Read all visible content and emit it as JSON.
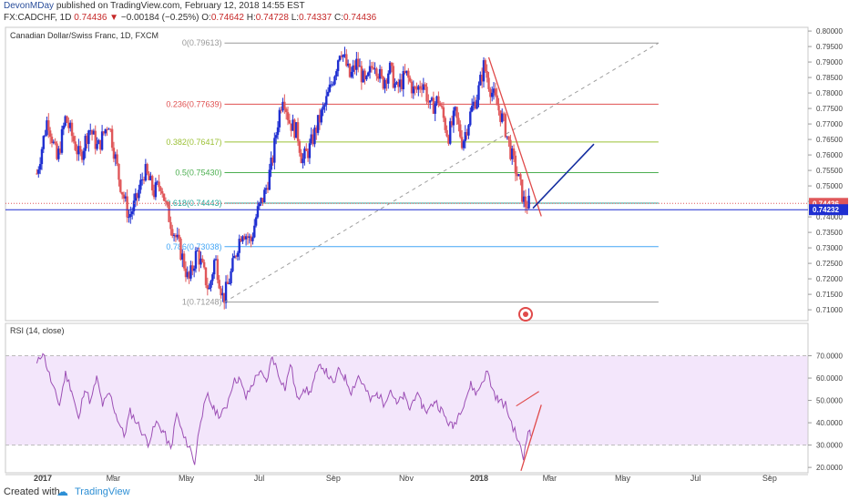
{
  "header": {
    "author": "DevonMDay",
    "published_text": "published on TradingView.com, February 12, 2018 14:55 EST",
    "symbol": "FX:CADCHF, 1D",
    "last": "0.74436",
    "change": "−0.00184 (−0.25%)",
    "o_label": "O:",
    "o_value": "0.74642",
    "h_label": "H:",
    "h_value": "0.74728",
    "l_label": "L:",
    "l_value": "0.74337",
    "c_label": "C:",
    "c_value": "0.74436"
  },
  "footer": {
    "created_with": "Created with",
    "brand": "TradingView"
  },
  "colors": {
    "up": "#1f2fd1",
    "down": "#e0575a",
    "rsi": "#9c4fb5",
    "rsi_band": "#f3e6fb",
    "trend": "#142ea0",
    "red_line": "#e04a4a"
  },
  "chart_data": [
    {
      "type": "candlestick",
      "title": "Canadian Dollar/Swiss Franc, 1D, FXCM",
      "ylim": [
        0.7065,
        0.8012
      ],
      "y_ticks": [
        "0.80000",
        "0.79500",
        "0.79000",
        "0.78500",
        "0.78000",
        "0.77500",
        "0.77000",
        "0.76500",
        "0.76000",
        "0.75500",
        "0.75000",
        "0.74500",
        "0.74000",
        "0.73500",
        "0.73000",
        "0.72500",
        "0.72000",
        "0.71500",
        "0.71000"
      ],
      "x_ticks": [
        "2017",
        "Mar",
        "May",
        "Jul",
        "Sep",
        "Nov",
        "2018",
        "Mar",
        "May",
        "Jul",
        "Sep"
      ],
      "price_labels": [
        {
          "value": "0.74436",
          "price": 0.74436,
          "color": "#e0575a"
        },
        {
          "value": "0.74232",
          "price": 0.74232,
          "color": "#1f2fd1"
        }
      ],
      "fib_levels": [
        {
          "label": "0(0.79613)",
          "price": 0.79613,
          "color": "#999999"
        },
        {
          "label": "0.236(0.77639)",
          "price": 0.77639,
          "color": "#e05050"
        },
        {
          "label": "0.382(0.76417)",
          "price": 0.76417,
          "color": "#9bc034"
        },
        {
          "label": "0.5(0.75430)",
          "price": 0.7543,
          "color": "#4caf50"
        },
        {
          "label": "0.618(0.74443)",
          "price": 0.74443,
          "color": "#26a69a"
        },
        {
          "label": "0.786(0.73038)",
          "price": 0.73038,
          "color": "#42a5f5"
        },
        {
          "label": "1(0.71248)",
          "price": 0.71248,
          "color": "#999999"
        }
      ],
      "price_path": [
        {
          "date": "2016-12-27",
          "price": 0.754
        },
        {
          "date": "2017-01-05",
          "price": 0.772
        },
        {
          "date": "2017-01-13",
          "price": 0.758
        },
        {
          "date": "2017-01-20",
          "price": 0.772
        },
        {
          "date": "2017-02-01",
          "price": 0.759
        },
        {
          "date": "2017-02-09",
          "price": 0.769
        },
        {
          "date": "2017-02-16",
          "price": 0.762
        },
        {
          "date": "2017-02-25",
          "price": 0.771
        },
        {
          "date": "2017-03-06",
          "price": 0.752
        },
        {
          "date": "2017-03-14",
          "price": 0.74
        },
        {
          "date": "2017-03-20",
          "price": 0.745
        },
        {
          "date": "2017-03-27",
          "price": 0.755
        },
        {
          "date": "2017-04-04",
          "price": 0.748
        },
        {
          "date": "2017-04-10",
          "price": 0.751
        },
        {
          "date": "2017-04-14",
          "price": 0.743
        },
        {
          "date": "2017-04-20",
          "price": 0.736
        },
        {
          "date": "2017-04-27",
          "price": 0.728
        },
        {
          "date": "2017-05-03",
          "price": 0.719
        },
        {
          "date": "2017-05-10",
          "price": 0.729
        },
        {
          "date": "2017-05-14",
          "price": 0.724
        },
        {
          "date": "2017-05-20",
          "price": 0.716
        },
        {
          "date": "2017-05-25",
          "price": 0.727
        },
        {
          "date": "2017-06-01",
          "price": 0.7132
        },
        {
          "date": "2017-06-07",
          "price": 0.721
        },
        {
          "date": "2017-06-13",
          "price": 0.731
        },
        {
          "date": "2017-06-17",
          "price": 0.736
        },
        {
          "date": "2017-06-24",
          "price": 0.732
        },
        {
          "date": "2017-06-29",
          "price": 0.741
        },
        {
          "date": "2017-07-06",
          "price": 0.748
        },
        {
          "date": "2017-07-12",
          "price": 0.758
        },
        {
          "date": "2017-07-17",
          "price": 0.772
        },
        {
          "date": "2017-07-21",
          "price": 0.78
        },
        {
          "date": "2017-07-26",
          "price": 0.771
        },
        {
          "date": "2017-08-02",
          "price": 0.767
        },
        {
          "date": "2017-08-06",
          "price": 0.758
        },
        {
          "date": "2017-08-12",
          "price": 0.762
        },
        {
          "date": "2017-08-19",
          "price": 0.77
        },
        {
          "date": "2017-08-25",
          "price": 0.776
        },
        {
          "date": "2017-08-29",
          "price": 0.781
        },
        {
          "date": "2017-09-03",
          "price": 0.788
        },
        {
          "date": "2017-09-07",
          "price": 0.795
        },
        {
          "date": "2017-09-11",
          "price": 0.79
        },
        {
          "date": "2017-09-15",
          "price": 0.785
        },
        {
          "date": "2017-09-21",
          "price": 0.79
        },
        {
          "date": "2017-09-28",
          "price": 0.782
        },
        {
          "date": "2017-10-05",
          "price": 0.791
        },
        {
          "date": "2017-10-12",
          "price": 0.783
        },
        {
          "date": "2017-10-18",
          "price": 0.788
        },
        {
          "date": "2017-10-24",
          "price": 0.781
        },
        {
          "date": "2017-11-01",
          "price": 0.786
        },
        {
          "date": "2017-11-08",
          "price": 0.78
        },
        {
          "date": "2017-11-15",
          "price": 0.784
        },
        {
          "date": "2017-11-21",
          "price": 0.775
        },
        {
          "date": "2017-11-28",
          "price": 0.778
        },
        {
          "date": "2017-12-06",
          "price": 0.766
        },
        {
          "date": "2017-12-12",
          "price": 0.773
        },
        {
          "date": "2017-12-18",
          "price": 0.764
        },
        {
          "date": "2017-12-26",
          "price": 0.775
        },
        {
          "date": "2017-12-31",
          "price": 0.78
        },
        {
          "date": "2018-01-05",
          "price": 0.789
        },
        {
          "date": "2018-01-10",
          "price": 0.782
        },
        {
          "date": "2018-01-16",
          "price": 0.776
        },
        {
          "date": "2018-01-22",
          "price": 0.77
        },
        {
          "date": "2018-01-28",
          "price": 0.76
        },
        {
          "date": "2018-02-03",
          "price": 0.752
        },
        {
          "date": "2018-02-08",
          "price": 0.744
        },
        {
          "date": "2018-02-12",
          "price": 0.74436
        }
      ],
      "drawings": {
        "dashed_trendline": {
          "from": {
            "date": "2017-06-02",
            "price": 0.71248
          },
          "to": {
            "date": "2018-05-31",
            "price": 0.79613
          }
        },
        "red_downtrend": {
          "from": {
            "date": "2018-01-09",
            "price": 0.7915
          },
          "to": {
            "date": "2018-02-22",
            "price": 0.7402
          }
        },
        "blue_projection": {
          "from": {
            "date": "2018-02-15",
            "price": 0.7428
          },
          "to": {
            "date": "2018-04-07",
            "price": 0.7635
          }
        },
        "horizontal_line": {
          "price": 0.74232
        }
      }
    },
    {
      "type": "line",
      "title": "RSI (14, close)",
      "ylim": [
        17.6,
        84.5
      ],
      "y_ticks": [
        "70.0000",
        "60.0000",
        "50.0000",
        "40.0000",
        "30.0000",
        "20.0000"
      ],
      "band": [
        30,
        70
      ],
      "series": [
        {
          "name": "RSI",
          "points": [
            {
              "date": "2016-12-27",
              "value": 66
            },
            {
              "date": "2017-01-01",
              "value": 72
            },
            {
              "date": "2017-01-05",
              "value": 64
            },
            {
              "date": "2017-01-10",
              "value": 55
            },
            {
              "date": "2017-01-15",
              "value": 48
            },
            {
              "date": "2017-01-20",
              "value": 62
            },
            {
              "date": "2017-01-25",
              "value": 55
            },
            {
              "date": "2017-01-31",
              "value": 41
            },
            {
              "date": "2017-02-05",
              "value": 56
            },
            {
              "date": "2017-02-10",
              "value": 49
            },
            {
              "date": "2017-02-15",
              "value": 60
            },
            {
              "date": "2017-02-20",
              "value": 48
            },
            {
              "date": "2017-02-26",
              "value": 53
            },
            {
              "date": "2017-03-03",
              "value": 44
            },
            {
              "date": "2017-03-10",
              "value": 34
            },
            {
              "date": "2017-03-15",
              "value": 45
            },
            {
              "date": "2017-03-22",
              "value": 39
            },
            {
              "date": "2017-03-30",
              "value": 31
            },
            {
              "date": "2017-04-06",
              "value": 40
            },
            {
              "date": "2017-04-12",
              "value": 36
            },
            {
              "date": "2017-04-18",
              "value": 28
            },
            {
              "date": "2017-04-23",
              "value": 44
            },
            {
              "date": "2017-04-29",
              "value": 33
            },
            {
              "date": "2017-05-04",
              "value": 29
            },
            {
              "date": "2017-05-08",
              "value": 22
            },
            {
              "date": "2017-05-13",
              "value": 42
            },
            {
              "date": "2017-05-19",
              "value": 52
            },
            {
              "date": "2017-05-24",
              "value": 46
            },
            {
              "date": "2017-05-30",
              "value": 43
            },
            {
              "date": "2017-06-04",
              "value": 48
            },
            {
              "date": "2017-06-09",
              "value": 58
            },
            {
              "date": "2017-06-14",
              "value": 60
            },
            {
              "date": "2017-06-20",
              "value": 51
            },
            {
              "date": "2017-06-25",
              "value": 57
            },
            {
              "date": "2017-07-01",
              "value": 63
            },
            {
              "date": "2017-07-07",
              "value": 58
            },
            {
              "date": "2017-07-12",
              "value": 70
            },
            {
              "date": "2017-07-17",
              "value": 62
            },
            {
              "date": "2017-07-23",
              "value": 55
            },
            {
              "date": "2017-07-27",
              "value": 67
            },
            {
              "date": "2017-08-02",
              "value": 50
            },
            {
              "date": "2017-08-07",
              "value": 56
            },
            {
              "date": "2017-08-12",
              "value": 53
            },
            {
              "date": "2017-08-17",
              "value": 61
            },
            {
              "date": "2017-08-22",
              "value": 66
            },
            {
              "date": "2017-08-27",
              "value": 62
            },
            {
              "date": "2017-09-01",
              "value": 57
            },
            {
              "date": "2017-09-06",
              "value": 64
            },
            {
              "date": "2017-09-11",
              "value": 60
            },
            {
              "date": "2017-09-16",
              "value": 54
            },
            {
              "date": "2017-09-22",
              "value": 61
            },
            {
              "date": "2017-09-27",
              "value": 56
            },
            {
              "date": "2017-10-02",
              "value": 50
            },
            {
              "date": "2017-10-08",
              "value": 53
            },
            {
              "date": "2017-10-13",
              "value": 49
            },
            {
              "date": "2017-10-19",
              "value": 55
            },
            {
              "date": "2017-10-24",
              "value": 48
            },
            {
              "date": "2017-10-30",
              "value": 52
            },
            {
              "date": "2017-11-04",
              "value": 46
            },
            {
              "date": "2017-11-09",
              "value": 53
            },
            {
              "date": "2017-11-14",
              "value": 48
            },
            {
              "date": "2017-11-19",
              "value": 45
            },
            {
              "date": "2017-11-25",
              "value": 50
            },
            {
              "date": "2017-11-30",
              "value": 46
            },
            {
              "date": "2017-12-05",
              "value": 41
            },
            {
              "date": "2017-12-10",
              "value": 38
            },
            {
              "date": "2017-12-15",
              "value": 44
            },
            {
              "date": "2017-12-20",
              "value": 50
            },
            {
              "date": "2017-12-25",
              "value": 57
            },
            {
              "date": "2017-12-30",
              "value": 53
            },
            {
              "date": "2018-01-04",
              "value": 59
            },
            {
              "date": "2018-01-08",
              "value": 63
            },
            {
              "date": "2018-01-12",
              "value": 55
            },
            {
              "date": "2018-01-17",
              "value": 50
            },
            {
              "date": "2018-01-23",
              "value": 48
            },
            {
              "date": "2018-01-28",
              "value": 40
            },
            {
              "date": "2018-02-02",
              "value": 33
            },
            {
              "date": "2018-02-07",
              "value": 24
            },
            {
              "date": "2018-02-11",
              "value": 38
            },
            {
              "date": "2018-02-13",
              "value": 34
            }
          ]
        }
      ],
      "drawings": {
        "red_segment": {
          "from": {
            "date": "2018-02-05",
            "value": 18.5
          },
          "to": {
            "date": "2018-02-22",
            "value": 48
          }
        },
        "red_divergence": {
          "from": {
            "date": "2018-02-01",
            "value": 47.5
          },
          "to": {
            "date": "2018-02-20",
            "value": 54
          }
        }
      }
    }
  ]
}
